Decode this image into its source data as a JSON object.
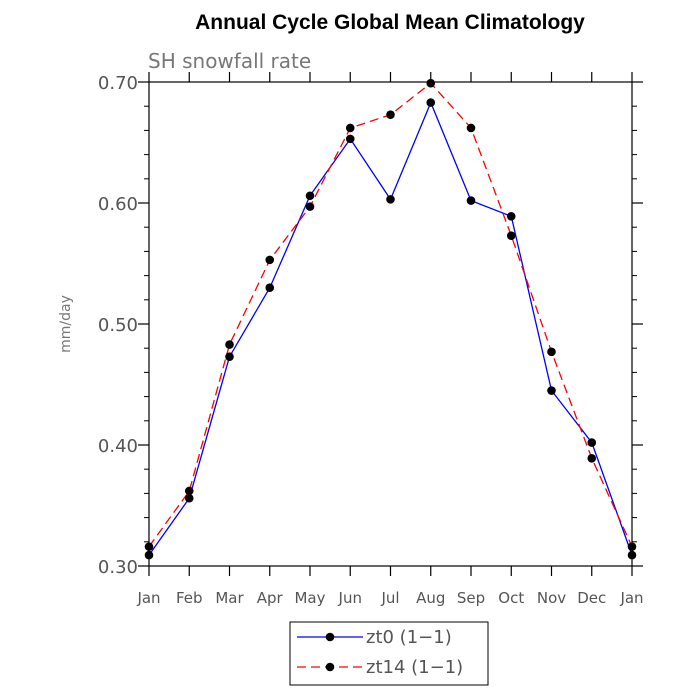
{
  "chart_data": {
    "type": "line",
    "title": "Annual Cycle Global Mean Climatology",
    "subtitle": "SH snowfall rate",
    "xlabel": "",
    "ylabel": "mm/day",
    "categories": [
      "Jan",
      "Feb",
      "Mar",
      "Apr",
      "May",
      "Jun",
      "Jul",
      "Aug",
      "Sep",
      "Oct",
      "Nov",
      "Dec",
      "Jan"
    ],
    "ylim": [
      0.3,
      0.7
    ],
    "yticks": [
      "0.30",
      "0.40",
      "0.50",
      "0.60",
      "0.70"
    ],
    "grid": false,
    "legend_position": "bottom-center",
    "series": [
      {
        "name": "zt0 (1−1)",
        "color": "#0000ff",
        "line_style": "solid",
        "values": [
          0.309,
          0.356,
          0.473,
          0.53,
          0.606,
          0.653,
          0.603,
          0.683,
          0.602,
          0.589,
          0.445,
          0.402,
          0.309
        ]
      },
      {
        "name": "zt14 (1−1)",
        "color": "#ff0000",
        "line_style": "dashed",
        "values": [
          0.316,
          0.362,
          0.483,
          0.553,
          0.597,
          0.662,
          0.673,
          0.699,
          0.662,
          0.573,
          0.477,
          0.389,
          0.316
        ]
      }
    ]
  }
}
